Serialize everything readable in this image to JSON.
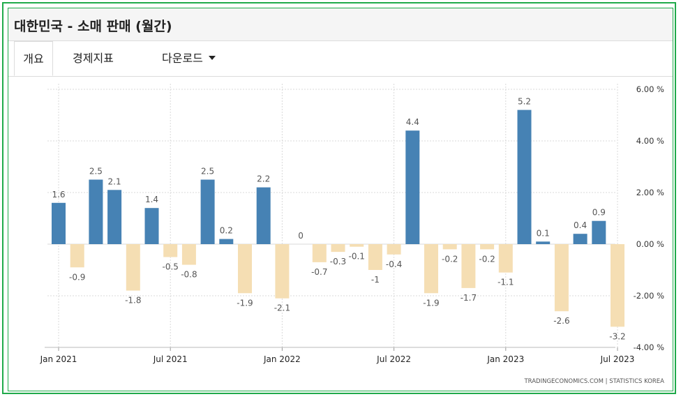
{
  "page": {
    "title": "대한민국 - 소매 판매 (월간)"
  },
  "tabs": [
    {
      "label": "개요"
    },
    {
      "label": "경제지표"
    },
    {
      "label": "다운로드"
    }
  ],
  "colors": {
    "positive": "#4682b4",
    "negative": "#f5deb3",
    "frame": "#1faa4a"
  },
  "chart_data": {
    "type": "bar",
    "title": "대한민국 - 소매 판매 (월간)",
    "xlabel": "",
    "ylabel": "",
    "ylim": [
      -4,
      6
    ],
    "yticks": [
      6,
      4,
      2,
      0,
      -2,
      -4
    ],
    "ytick_labels": [
      "6.00 %",
      "4.00 %",
      "2.00 %",
      "0.00 %",
      "-2.00 %",
      "-4.00 %"
    ],
    "x_tick_labels": [
      {
        "label": "Jan 2021",
        "index": 0
      },
      {
        "label": "Jul 2021",
        "index": 6
      },
      {
        "label": "Jan 2022",
        "index": 12
      },
      {
        "label": "Jul 2022",
        "index": 18
      },
      {
        "label": "Jan 2023",
        "index": 24
      },
      {
        "label": "Jul 2023",
        "index": 30
      }
    ],
    "categories": [
      "2021-01",
      "2021-02",
      "2021-03",
      "2021-04",
      "2021-05",
      "2021-06",
      "2021-07",
      "2021-08",
      "2021-09",
      "2021-10",
      "2021-11",
      "2021-12",
      "2022-01",
      "2022-02",
      "2022-03",
      "2022-04",
      "2022-05",
      "2022-06",
      "2022-07",
      "2022-08",
      "2022-09",
      "2022-10",
      "2022-11",
      "2022-12",
      "2023-01",
      "2023-02",
      "2023-03",
      "2023-04",
      "2023-05",
      "2023-06",
      "2023-07"
    ],
    "values": [
      1.6,
      -0.9,
      2.5,
      2.1,
      -1.8,
      1.4,
      -0.5,
      -0.8,
      2.5,
      0.2,
      -1.9,
      2.2,
      -2.1,
      0,
      -0.7,
      -0.3,
      -0.1,
      -1,
      -0.4,
      4.4,
      -1.9,
      -0.2,
      -1.7,
      -0.2,
      -1.1,
      5.2,
      0.1,
      -2.6,
      0.4,
      0.9,
      -3.2
    ],
    "data_labels": [
      "1.6",
      "-0.9",
      "2.5",
      "2.1",
      "-1.8",
      "1.4",
      "-0.5",
      "-0.8",
      "2.5",
      "0.2",
      "-1.9",
      "2.2",
      "-2.1",
      "0",
      "-0.7",
      "-0.3",
      "-0.1",
      "-1",
      "-0.4",
      "4.4",
      "-1.9",
      "-0.2",
      "-1.7",
      "-0.2",
      "-1.1",
      "5.2",
      "0.1",
      "-2.6",
      "0.4",
      "0.9",
      "-3.2"
    ],
    "source": "TRADINGECONOMICS.COM  |  STATISTICS KOREA"
  }
}
